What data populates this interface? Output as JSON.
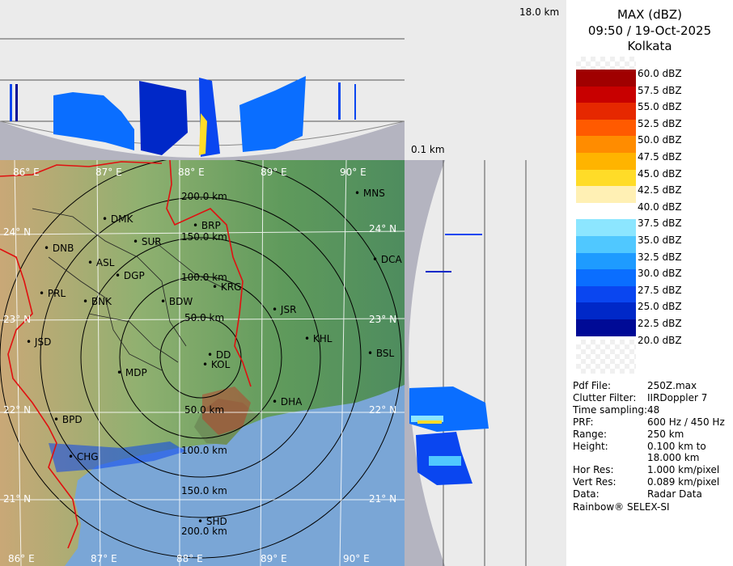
{
  "top_panel": {
    "height_label": "18.0 km"
  },
  "side_panel": {
    "height_label": "0.1 km"
  },
  "legend": {
    "title": "MAX (dBZ)",
    "datetime": "09:50 / 19-Oct-2025",
    "station": "Kolkata",
    "levels": [
      {
        "label": "60.0 dBZ",
        "color": ""
      },
      {
        "label": "57.5 dBZ",
        "color": "#a00000"
      },
      {
        "label": "55.0 dBZ",
        "color": "#c80000"
      },
      {
        "label": "52.5 dBZ",
        "color": "#e62800"
      },
      {
        "label": "50.0 dBZ",
        "color": "#ff5a00"
      },
      {
        "label": "47.5 dBZ",
        "color": "#ff8c00"
      },
      {
        "label": "45.0 dBZ",
        "color": "#ffb400"
      },
      {
        "label": "42.5 dBZ",
        "color": "#ffdc28"
      },
      {
        "label": "40.0 dBZ",
        "color": "#fff0b4"
      },
      {
        "label": "37.5 dBZ",
        "color": "#ffffff"
      },
      {
        "label": "35.0 dBZ",
        "color": "#8ce6ff"
      },
      {
        "label": "32.5 dBZ",
        "color": "#50c8ff"
      },
      {
        "label": "30.0 dBZ",
        "color": "#1e9bff"
      },
      {
        "label": "27.5 dBZ",
        "color": "#0a6eff"
      },
      {
        "label": "25.0 dBZ",
        "color": "#0a46f0"
      },
      {
        "label": "22.5 dBZ",
        "color": "#0028c8"
      },
      {
        "label": "20.0 dBZ",
        "color": "#000a96"
      }
    ]
  },
  "info": [
    {
      "key": "Pdf File:",
      "value": "250Z.max"
    },
    {
      "key": "Clutter Filter:",
      "value": "IIRDoppler 7"
    },
    {
      "key": "Time sampling:",
      "value": "48"
    },
    {
      "key": "PRF:",
      "value": "600 Hz / 450 Hz"
    },
    {
      "key": "Range:",
      "value": "250 km"
    },
    {
      "key": "Height:",
      "value": "0.100 km to"
    },
    {
      "key": "",
      "value": "18.000 km"
    },
    {
      "key": "Hor Res:",
      "value": "1.000 km/pixel"
    },
    {
      "key": "Vert Res:",
      "value": "0.089 km/pixel"
    },
    {
      "key": "Data:",
      "value": "Radar Data"
    }
  ],
  "footer": "Rainbow® SELEX-SI",
  "map": {
    "lon_top": [
      "86° E",
      "87° E",
      "88° E",
      "89° E",
      "90° E"
    ],
    "lon_bottom": [
      "86° E",
      "87° E",
      "88° E",
      "89° E",
      "90° E"
    ],
    "lat_right": [
      "24° N",
      "23° N",
      "22° N",
      "21° N"
    ],
    "lat_left": [
      "24° N",
      "23° N",
      "22° N",
      "21° N"
    ],
    "ranges": [
      "50.0 km",
      "100.0 km",
      "150.0 km",
      "200.0 km",
      "50.0 km",
      "100.0 km",
      "150.0 km",
      "200.0 km"
    ],
    "cities": [
      "MNS",
      "DMK",
      "BRP",
      "SUR",
      "DNB",
      "ASL",
      "DGP",
      "DCA",
      "PRL",
      "BNK",
      "KRG",
      "BDW",
      "JSR",
      "KHL",
      "JSD",
      "DD",
      "BSL",
      "KOL",
      "MDP",
      "BPD",
      "SHD",
      "DHA",
      "CHG"
    ]
  },
  "colors": {
    "panel_bg": "#ebebeb",
    "ring": "#000000",
    "border_red": "#e01010",
    "sea": "#7aa6d6"
  }
}
